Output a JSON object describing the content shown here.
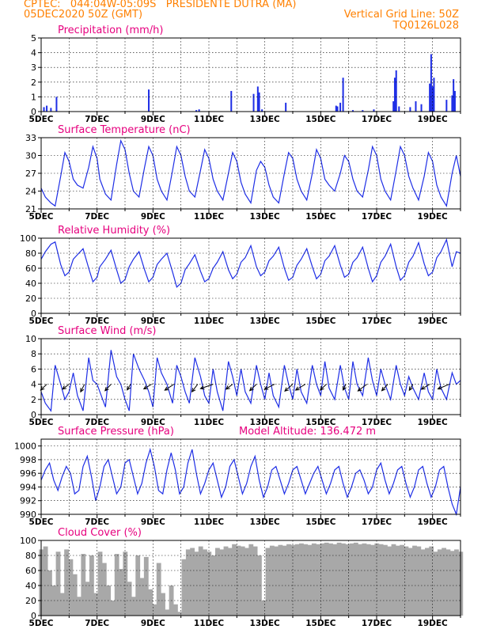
{
  "header": {
    "line1": "CPTEC:   044:04W-05:09S   PRESIDENTE DUTRA (MA)",
    "line2_left": "05DEC2020 50Z (GMT)",
    "line2_right": "Vertical Grid Line: 50Z",
    "line3_right": "TQ0126L028"
  },
  "colors": {
    "header": "#ff8000",
    "panel_title": "#e6007e",
    "series": "#1e2ee6",
    "wind_arrow": "#000000",
    "cloud": "#a8a8a8",
    "grid": "#000000"
  },
  "x_axis": {
    "tick_labels": [
      "5DEC",
      "7DEC",
      "9DEC",
      "11DEC",
      "13DEC",
      "15DEC",
      "17DEC",
      "19DEC"
    ],
    "tick_days": [
      5,
      7,
      9,
      11,
      13,
      15,
      17,
      19
    ],
    "range_days": [
      5,
      20
    ]
  },
  "panel_titles": {
    "precip": "Precipitation (mm/h)",
    "temp": "Surface Temperature (nC)",
    "rh": "Relative Humidity (%)",
    "wind": "Surface Wind (m/s)",
    "pressure": "Surface Pressure (hPa)",
    "pressure_note": "Model Altitude: 136.472 m",
    "cloud": "Cloud Cover (%)"
  },
  "chart_data": [
    {
      "id": "precip",
      "type": "bar",
      "title": "Precipitation (mm/h)",
      "ylim": [
        0,
        5
      ],
      "yticks": [
        0,
        1,
        2,
        3,
        4,
        5
      ],
      "grid": true,
      "x": [
        5.1,
        5.2,
        5.35,
        5.55,
        8.85,
        10.55,
        10.65,
        11.8,
        12.6,
        12.75,
        12.8,
        12.9,
        13.75,
        15.55,
        15.6,
        15.7,
        15.8,
        16.15,
        16.5,
        16.9,
        17.6,
        17.65,
        17.7,
        17.8,
        18.2,
        18.4,
        18.6,
        18.9,
        18.95,
        19.0,
        19.05,
        19.5,
        19.7,
        19.75,
        19.8
      ],
      "values": [
        0.3,
        0.4,
        0.25,
        1.0,
        1.5,
        0.1,
        0.15,
        1.4,
        1.2,
        1.7,
        1.3,
        0.15,
        0.6,
        0.4,
        0.35,
        0.6,
        2.3,
        0.1,
        0.1,
        0.15,
        0.7,
        2.3,
        2.8,
        0.35,
        0.3,
        0.7,
        0.5,
        1.9,
        3.9,
        1.7,
        2.3,
        0.8,
        1.1,
        2.2,
        1.4
      ]
    },
    {
      "id": "temp",
      "type": "line",
      "title": "Surface Temperature (nC)",
      "ylim": [
        21,
        33
      ],
      "yticks": [
        21,
        24,
        27,
        30,
        33
      ],
      "x": [
        5.0,
        5.15,
        5.35,
        5.5,
        5.7,
        5.85,
        6.0,
        6.15,
        6.3,
        6.5,
        6.7,
        6.85,
        7.0,
        7.1,
        7.3,
        7.5,
        7.7,
        7.85,
        8.0,
        8.15,
        8.3,
        8.5,
        8.7,
        8.85,
        9.0,
        9.15,
        9.3,
        9.5,
        9.7,
        9.85,
        10.0,
        10.15,
        10.3,
        10.5,
        10.7,
        10.85,
        11.0,
        11.15,
        11.3,
        11.5,
        11.7,
        11.85,
        12.0,
        12.15,
        12.3,
        12.5,
        12.7,
        12.85,
        13.0,
        13.15,
        13.3,
        13.5,
        13.7,
        13.85,
        14.0,
        14.15,
        14.3,
        14.5,
        14.7,
        14.85,
        15.0,
        15.15,
        15.3,
        15.5,
        15.7,
        15.85,
        16.0,
        16.15,
        16.3,
        16.5,
        16.7,
        16.85,
        17.0,
        17.15,
        17.3,
        17.5,
        17.7,
        17.85,
        18.0,
        18.15,
        18.3,
        18.5,
        18.7,
        18.85,
        19.0,
        19.15,
        19.3,
        19.5,
        19.7,
        19.85,
        20.0
      ],
      "values": [
        24.5,
        23.0,
        22.0,
        21.5,
        26.5,
        30.5,
        29.0,
        26.0,
        25.0,
        24.5,
        28.0,
        31.5,
        29.5,
        26.0,
        23.5,
        22.5,
        28.5,
        32.5,
        31.0,
        27.0,
        24.0,
        23.0,
        28.0,
        31.5,
        30.0,
        26.0,
        24.0,
        22.5,
        27.5,
        31.5,
        30.0,
        26.5,
        24.0,
        23.0,
        27.5,
        31.0,
        29.5,
        26.0,
        24.0,
        22.5,
        27.0,
        30.5,
        29.0,
        25.5,
        23.5,
        22.0,
        27.5,
        29.0,
        28.0,
        25.0,
        23.0,
        22.0,
        27.0,
        30.5,
        29.5,
        26.0,
        24.0,
        22.5,
        27.0,
        31.0,
        29.5,
        26.0,
        25.0,
        24.0,
        27.0,
        30.0,
        29.0,
        26.0,
        24.0,
        23.0,
        27.5,
        31.5,
        30.0,
        26.0,
        24.0,
        22.5,
        27.5,
        31.5,
        30.0,
        26.5,
        24.5,
        22.5,
        26.5,
        30.5,
        29.0,
        25.0,
        23.0,
        21.5,
        27.0,
        30.0,
        26.5
      ]
    },
    {
      "id": "rh",
      "type": "line",
      "title": "Relative Humidity (%)",
      "ylim": [
        0,
        100
      ],
      "yticks": [
        0,
        20,
        40,
        60,
        80,
        100
      ],
      "x": [
        5.0,
        5.15,
        5.35,
        5.5,
        5.7,
        5.85,
        6.0,
        6.15,
        6.3,
        6.5,
        6.7,
        6.85,
        7.0,
        7.1,
        7.3,
        7.5,
        7.7,
        7.85,
        8.0,
        8.15,
        8.3,
        8.5,
        8.7,
        8.85,
        9.0,
        9.15,
        9.3,
        9.5,
        9.7,
        9.85,
        10.0,
        10.15,
        10.3,
        10.5,
        10.7,
        10.85,
        11.0,
        11.15,
        11.3,
        11.5,
        11.7,
        11.85,
        12.0,
        12.15,
        12.3,
        12.5,
        12.7,
        12.85,
        13.0,
        13.15,
        13.3,
        13.5,
        13.7,
        13.85,
        14.0,
        14.15,
        14.3,
        14.5,
        14.7,
        14.85,
        15.0,
        15.15,
        15.3,
        15.5,
        15.7,
        15.85,
        16.0,
        16.15,
        16.3,
        16.5,
        16.7,
        16.85,
        17.0,
        17.15,
        17.3,
        17.5,
        17.7,
        17.85,
        18.0,
        18.15,
        18.3,
        18.5,
        18.7,
        18.85,
        19.0,
        19.15,
        19.3,
        19.5,
        19.7,
        19.85,
        20.0
      ],
      "values": [
        72,
        82,
        92,
        95,
        65,
        50,
        55,
        72,
        78,
        86,
        60,
        42,
        48,
        62,
        72,
        84,
        58,
        40,
        45,
        62,
        72,
        82,
        58,
        42,
        48,
        65,
        72,
        80,
        55,
        35,
        40,
        58,
        66,
        78,
        56,
        42,
        46,
        60,
        68,
        82,
        58,
        46,
        52,
        68,
        74,
        90,
        62,
        50,
        55,
        70,
        76,
        88,
        60,
        44,
        48,
        64,
        72,
        86,
        62,
        46,
        52,
        70,
        76,
        90,
        64,
        48,
        52,
        68,
        74,
        88,
        60,
        42,
        50,
        68,
        76,
        92,
        62,
        44,
        50,
        68,
        76,
        94,
        66,
        50,
        55,
        74,
        82,
        98,
        62,
        82,
        80
      ]
    },
    {
      "id": "wind",
      "type": "line",
      "title": "Surface Wind (m/s)",
      "ylim": [
        0,
        10
      ],
      "yticks": [
        0,
        2,
        4,
        6,
        8,
        10
      ],
      "x": [
        5.0,
        5.15,
        5.35,
        5.5,
        5.7,
        5.85,
        6.0,
        6.15,
        6.3,
        6.5,
        6.7,
        6.85,
        7.0,
        7.1,
        7.3,
        7.5,
        7.7,
        7.85,
        8.0,
        8.15,
        8.3,
        8.5,
        8.7,
        8.85,
        9.0,
        9.15,
        9.3,
        9.5,
        9.7,
        9.85,
        10.0,
        10.15,
        10.3,
        10.5,
        10.7,
        10.85,
        11.0,
        11.15,
        11.3,
        11.5,
        11.7,
        11.85,
        12.0,
        12.15,
        12.3,
        12.5,
        12.7,
        12.85,
        13.0,
        13.15,
        13.3,
        13.5,
        13.7,
        13.85,
        14.0,
        14.15,
        14.3,
        14.5,
        14.7,
        14.85,
        15.0,
        15.15,
        15.3,
        15.5,
        15.7,
        15.85,
        16.0,
        16.15,
        16.3,
        16.5,
        16.7,
        16.85,
        17.0,
        17.15,
        17.3,
        17.5,
        17.7,
        17.85,
        18.0,
        18.15,
        18.3,
        18.5,
        18.7,
        18.85,
        19.0,
        19.15,
        19.3,
        19.5,
        19.7,
        19.85,
        20.0
      ],
      "values": [
        3.0,
        1.5,
        0.5,
        6.5,
        4.0,
        2.0,
        3.0,
        5.5,
        2.5,
        0.5,
        7.5,
        4.5,
        4.0,
        3.0,
        1.0,
        8.5,
        5.0,
        4.0,
        2.0,
        0.5,
        8.0,
        6.0,
        4.5,
        3.0,
        1.0,
        7.5,
        5.5,
        4.0,
        1.5,
        6.5,
        5.0,
        3.0,
        1.5,
        7.5,
        5.0,
        2.5,
        1.5,
        6.0,
        3.0,
        0.5,
        7.0,
        5.0,
        2.5,
        6.0,
        3.0,
        1.5,
        6.5,
        4.0,
        2.0,
        5.5,
        2.5,
        1.0,
        6.5,
        4.0,
        2.0,
        6.0,
        3.0,
        1.5,
        6.5,
        4.0,
        2.5,
        7.0,
        3.5,
        2.0,
        6.5,
        3.5,
        2.0,
        7.0,
        4.0,
        2.5,
        7.5,
        4.5,
        2.5,
        6.0,
        4.0,
        2.0,
        6.5,
        4.0,
        2.5,
        5.0,
        3.5,
        2.0,
        5.5,
        3.0,
        2.0,
        6.0,
        3.5,
        2.0,
        5.5,
        4.0,
        4.5
      ],
      "arrows": {
        "x": [
          5.2,
          6.0,
          6.55,
          7.5,
          8.2,
          8.95,
          9.75,
          10.6,
          11.15,
          11.85,
          12.7,
          13.35,
          14.0,
          14.45,
          15.2,
          15.9,
          16.65,
          17.4,
          18.3,
          18.9,
          19.6
        ],
        "speed": [
          3.2,
          2.8,
          4.0,
          3.5,
          3.0,
          2.8,
          3.5,
          4.0,
          3.2,
          2.8,
          3.5,
          3.2,
          3.8,
          3.5,
          3.2,
          3.0,
          3.8,
          3.5,
          3.2,
          3.0,
          3.2
        ],
        "direction_deg": [
          70,
          65,
          80,
          72,
          78,
          60,
          62,
          75,
          45,
          65,
          70,
          55,
          68,
          60,
          70,
          80,
          65,
          72,
          78,
          60,
          50
        ]
      }
    },
    {
      "id": "pressure",
      "type": "line",
      "title": "Surface Pressure (hPa)",
      "ylim": [
        990,
        1001
      ],
      "yticks": [
        990,
        992,
        994,
        996,
        998,
        1000
      ],
      "x": [
        5.0,
        5.15,
        5.3,
        5.45,
        5.6,
        5.75,
        5.9,
        6.05,
        6.2,
        6.35,
        6.5,
        6.65,
        6.8,
        6.95,
        7.1,
        7.25,
        7.4,
        7.55,
        7.7,
        7.85,
        8.0,
        8.15,
        8.3,
        8.45,
        8.6,
        8.75,
        8.9,
        9.05,
        9.2,
        9.35,
        9.5,
        9.65,
        9.8,
        9.95,
        10.1,
        10.25,
        10.4,
        10.55,
        10.7,
        10.85,
        11.0,
        11.15,
        11.3,
        11.45,
        11.6,
        11.75,
        11.9,
        12.05,
        12.2,
        12.35,
        12.5,
        12.65,
        12.8,
        12.95,
        13.1,
        13.25,
        13.4,
        13.55,
        13.7,
        13.85,
        14.0,
        14.15,
        14.3,
        14.45,
        14.6,
        14.75,
        14.9,
        15.05,
        15.2,
        15.35,
        15.5,
        15.65,
        15.8,
        15.95,
        16.1,
        16.25,
        16.4,
        16.55,
        16.7,
        16.85,
        17.0,
        17.15,
        17.3,
        17.45,
        17.6,
        17.75,
        17.9,
        18.05,
        18.2,
        18.35,
        18.5,
        18.65,
        18.8,
        18.95,
        19.1,
        19.25,
        19.4,
        19.55,
        19.7,
        19.85,
        20.0
      ],
      "values": [
        995.0,
        996.5,
        997.5,
        995.0,
        993.5,
        995.5,
        997.0,
        996.0,
        993.0,
        993.5,
        997.0,
        998.5,
        995.5,
        992.0,
        994.0,
        997.0,
        998.0,
        995.5,
        993.0,
        994.0,
        997.5,
        998.0,
        995.5,
        993.0,
        994.5,
        997.5,
        999.5,
        997.0,
        993.5,
        993.0,
        996.5,
        999.0,
        996.5,
        993.0,
        994.0,
        997.5,
        999.5,
        996.0,
        993.0,
        994.5,
        996.5,
        997.5,
        995.0,
        992.5,
        994.0,
        997.0,
        998.0,
        995.5,
        993.0,
        994.5,
        997.0,
        998.5,
        995.0,
        992.5,
        994.0,
        996.5,
        997.0,
        995.0,
        993.0,
        994.5,
        996.5,
        997.0,
        995.0,
        993.0,
        994.5,
        996.0,
        997.0,
        995.0,
        993.0,
        994.5,
        996.5,
        997.0,
        994.5,
        992.5,
        994.0,
        996.0,
        996.5,
        995.0,
        993.0,
        994.0,
        996.5,
        997.5,
        995.0,
        993.0,
        994.5,
        996.5,
        997.0,
        994.5,
        992.5,
        994.0,
        996.5,
        997.0,
        994.5,
        992.5,
        994.0,
        996.5,
        997.0,
        994.0,
        991.5,
        990.0,
        994.0
      ]
    },
    {
      "id": "cloud",
      "type": "area",
      "title": "Cloud Cover (%)",
      "ylim": [
        0,
        100
      ],
      "yticks": [
        0,
        20,
        40,
        60,
        80,
        100
      ],
      "x": [
        5.0,
        5.15,
        5.3,
        5.45,
        5.6,
        5.75,
        5.9,
        6.05,
        6.2,
        6.35,
        6.5,
        6.65,
        6.8,
        6.95,
        7.1,
        7.25,
        7.4,
        7.55,
        7.7,
        7.85,
        8.0,
        8.15,
        8.3,
        8.45,
        8.6,
        8.75,
        8.9,
        9.05,
        9.2,
        9.35,
        9.5,
        9.65,
        9.8,
        9.95,
        10.1,
        10.25,
        10.4,
        10.55,
        10.7,
        10.85,
        11.0,
        11.15,
        11.3,
        11.45,
        11.6,
        11.75,
        11.9,
        12.05,
        12.2,
        12.35,
        12.5,
        12.65,
        12.8,
        12.95,
        13.1,
        13.25,
        13.4,
        13.55,
        13.7,
        13.85,
        14.0,
        14.15,
        14.3,
        14.45,
        14.6,
        14.75,
        14.9,
        15.05,
        15.2,
        15.35,
        15.5,
        15.65,
        15.8,
        15.95,
        16.1,
        16.25,
        16.4,
        16.55,
        16.7,
        16.85,
        17.0,
        17.15,
        17.3,
        17.45,
        17.6,
        17.75,
        17.9,
        18.05,
        18.2,
        18.35,
        18.5,
        18.65,
        18.8,
        18.95,
        19.1,
        19.25,
        19.4,
        19.55,
        19.7,
        19.85,
        20.0
      ],
      "values": [
        88,
        92,
        60,
        40,
        85,
        30,
        88,
        75,
        55,
        25,
        82,
        45,
        80,
        30,
        85,
        70,
        40,
        20,
        82,
        62,
        85,
        45,
        25,
        80,
        50,
        78,
        35,
        15,
        70,
        30,
        8,
        40,
        15,
        5,
        75,
        88,
        90,
        85,
        92,
        88,
        85,
        80,
        90,
        88,
        92,
        90,
        95,
        93,
        92,
        90,
        95,
        92,
        80,
        20,
        90,
        93,
        92,
        94,
        93,
        95,
        94,
        95,
        96,
        95,
        94,
        96,
        95,
        96,
        97,
        96,
        95,
        97,
        96,
        95,
        96,
        97,
        95,
        96,
        95,
        94,
        96,
        95,
        94,
        92,
        95,
        93,
        94,
        92,
        90,
        93,
        92,
        88,
        90,
        92,
        85,
        88,
        90,
        88,
        86,
        88,
        85
      ]
    }
  ]
}
